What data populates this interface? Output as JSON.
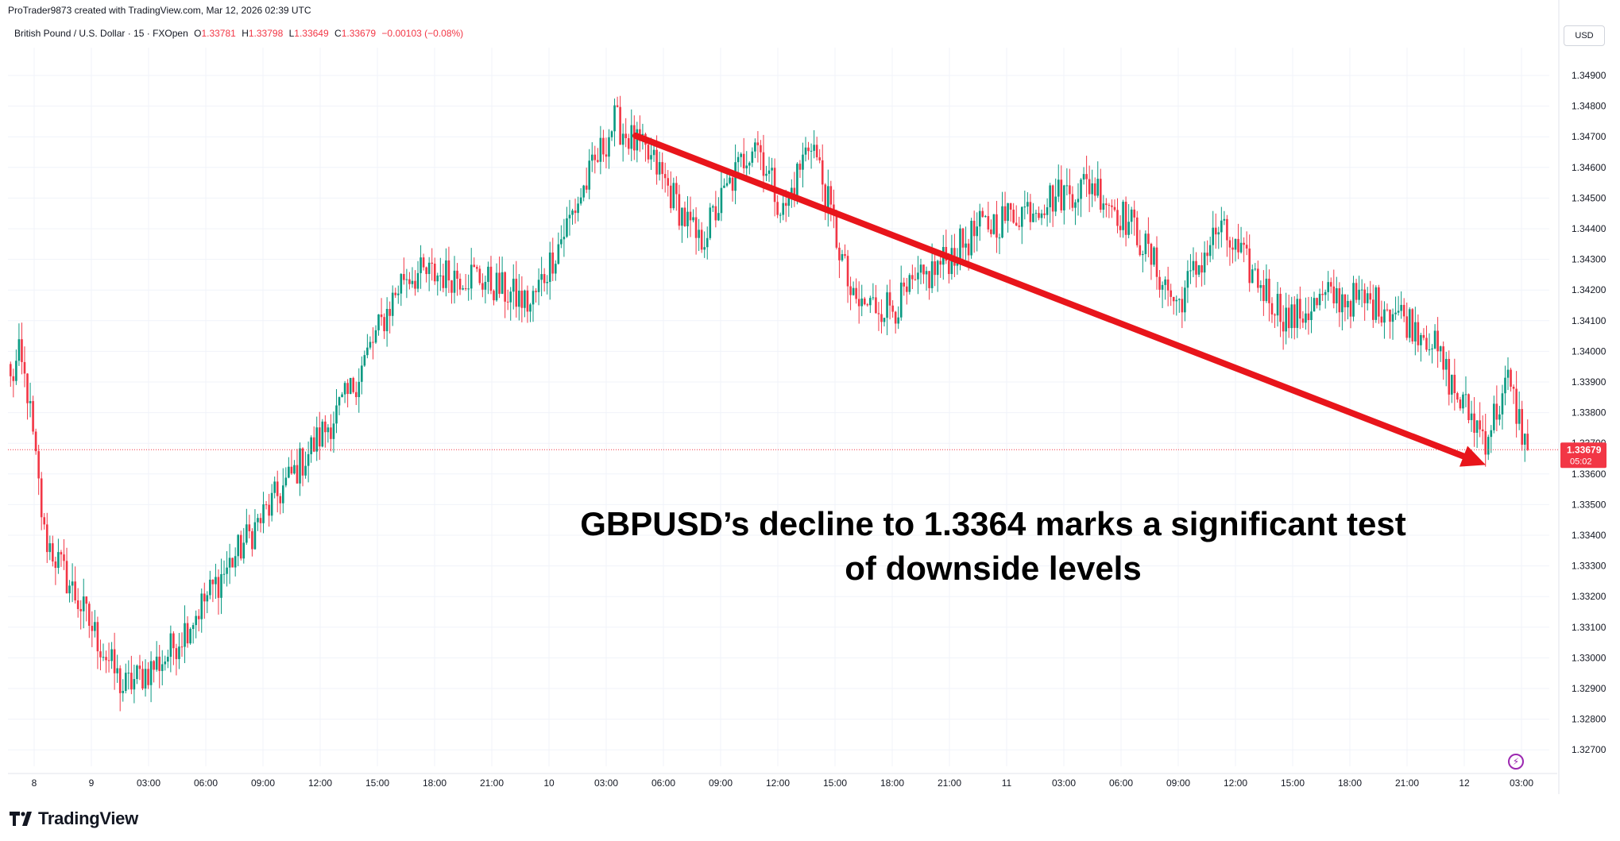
{
  "header": {
    "text": "ProTrader9873 created with TradingView.com, Mar 12, 2026 02:39 UTC"
  },
  "legend": {
    "symbol": "British Pound / U.S. Dollar · 15 · FXOpen",
    "open_label": "O",
    "open": "1.33781",
    "high_label": "H",
    "high": "1.33798",
    "low_label": "L",
    "low": "1.33649",
    "close_label": "C",
    "close": "1.33679",
    "change": "−0.00103 (−0.08%)"
  },
  "currency_button": "USD",
  "annotation": {
    "line1": "GBPUSD’s decline to 1.3364 marks a significant test",
    "line2": "of downside levels"
  },
  "footer": {
    "brand": "TradingView"
  },
  "chart_data": {
    "type": "candlestick",
    "symbol": "GBPUSD",
    "timeframe": "15",
    "ylim": [
      1.3265,
      1.3495
    ],
    "y_ticks": [
      "1.34900",
      "1.34800",
      "1.34700",
      "1.34600",
      "1.34500",
      "1.34400",
      "1.34300",
      "1.34200",
      "1.34100",
      "1.34000",
      "1.33900",
      "1.33800",
      "1.33700",
      "1.33600",
      "1.33500",
      "1.33400",
      "1.33300",
      "1.33200",
      "1.33100",
      "1.33000",
      "1.32900",
      "1.32800",
      "1.32700"
    ],
    "x_tick_labels": [
      "8",
      "9",
      "03:00",
      "06:00",
      "09:00",
      "12:00",
      "15:00",
      "18:00",
      "21:00",
      "10",
      "03:00",
      "06:00",
      "09:00",
      "12:00",
      "15:00",
      "18:00",
      "21:00",
      "11",
      "03:00",
      "06:00",
      "09:00",
      "12:00",
      "15:00",
      "18:00",
      "21:00",
      "12",
      "03:00"
    ],
    "bars_per_hour": 4,
    "close_path_anchors": [
      [
        0,
        1.339
      ],
      [
        3,
        1.3398
      ],
      [
        6,
        1.3387
      ],
      [
        12,
        1.334
      ],
      [
        40,
        1.329
      ],
      [
        55,
        1.33
      ],
      [
        85,
        1.334
      ],
      [
        120,
        1.3385
      ],
      [
        140,
        1.3425
      ],
      [
        165,
        1.3425
      ],
      [
        185,
        1.3415
      ],
      [
        200,
        1.3445
      ],
      [
        215,
        1.3475
      ],
      [
        230,
        1.346
      ],
      [
        245,
        1.3435
      ],
      [
        265,
        1.347
      ],
      [
        275,
        1.3445
      ],
      [
        285,
        1.347
      ],
      [
        300,
        1.3415
      ],
      [
        315,
        1.3415
      ],
      [
        345,
        1.344
      ],
      [
        370,
        1.345
      ],
      [
        385,
        1.3455
      ],
      [
        400,
        1.344
      ],
      [
        415,
        1.3415
      ],
      [
        430,
        1.344
      ],
      [
        455,
        1.341
      ],
      [
        470,
        1.3418
      ],
      [
        490,
        1.3415
      ],
      [
        505,
        1.3405
      ],
      [
        515,
        1.3385
      ],
      [
        525,
        1.3372
      ],
      [
        533,
        1.339
      ],
      [
        540,
        1.3368
      ]
    ],
    "last_price": "1.33679",
    "last_price_countdown": "05:02",
    "last_price_value": 1.33679,
    "trend_arrow": {
      "from": [
        1.3475,
        "Mar 10 05:15"
      ],
      "to": [
        1.3364,
        "Mar 12 02:30"
      ],
      "direction": "down",
      "color": "#e8151b"
    },
    "colors": {
      "up": "#089981",
      "down": "#f23645",
      "grid": "#f0f3fa",
      "last_price": "#f23645",
      "arrow": "#e8151b"
    }
  }
}
